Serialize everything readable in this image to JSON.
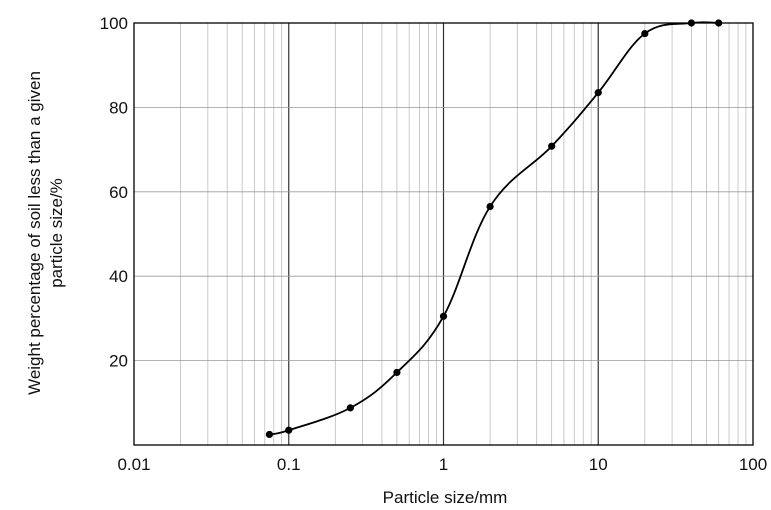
{
  "chart_data": {
    "type": "line",
    "title": "",
    "xlabel": "Particle size/mm",
    "ylabel_line1": "Weight percentage of soil less than a given",
    "ylabel_line2": "particle size/%",
    "xscale": "log",
    "xlim": [
      0.01,
      100
    ],
    "ylim": [
      0,
      100
    ],
    "grid": true,
    "legend": "none",
    "x_tick_labels": [
      "0.01",
      "0.1",
      "1",
      "10",
      "100"
    ],
    "y_tick_labels": [
      "20",
      "40",
      "60",
      "80",
      "100"
    ],
    "series": [
      {
        "points": [
          {
            "x": 0.075,
            "y": 2.5
          },
          {
            "x": 0.1,
            "y": 3.5
          },
          {
            "x": 0.25,
            "y": 8.8
          },
          {
            "x": 0.5,
            "y": 17.2
          },
          {
            "x": 1,
            "y": 30.5
          },
          {
            "x": 2,
            "y": 56.5
          },
          {
            "x": 5,
            "y": 70.8
          },
          {
            "x": 10,
            "y": 83.5
          },
          {
            "x": 20,
            "y": 97.5
          },
          {
            "x": 40,
            "y": 100
          },
          {
            "x": 60,
            "y": 100
          }
        ]
      }
    ],
    "colors": {
      "line": "#000000",
      "grid_major": "#333333",
      "grid_minor": "#bdbdbd"
    }
  }
}
